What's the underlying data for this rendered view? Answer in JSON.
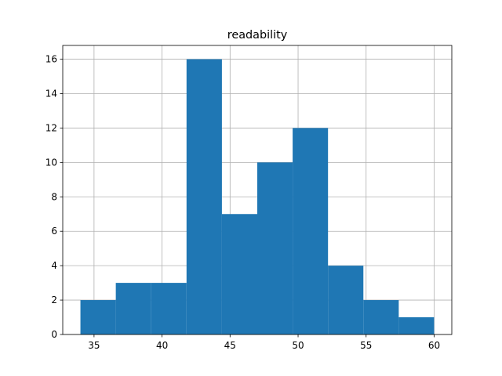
{
  "chart_data": {
    "type": "histogram",
    "title": "readability",
    "bins": [
      34,
      36.6,
      39.2,
      41.8,
      44.4,
      47,
      49.6,
      52.2,
      54.8,
      57.4,
      60
    ],
    "values": [
      2,
      3,
      3,
      16,
      7,
      10,
      12,
      4,
      2,
      1
    ],
    "color": "#1f77b4",
    "xlim": [
      32.7,
      61.3
    ],
    "xticks": [
      35,
      40,
      45,
      50,
      55,
      60
    ],
    "ylim": [
      0,
      16.8
    ],
    "yticks": [
      0,
      2,
      4,
      6,
      8,
      10,
      12,
      14,
      16
    ],
    "grid": true
  }
}
